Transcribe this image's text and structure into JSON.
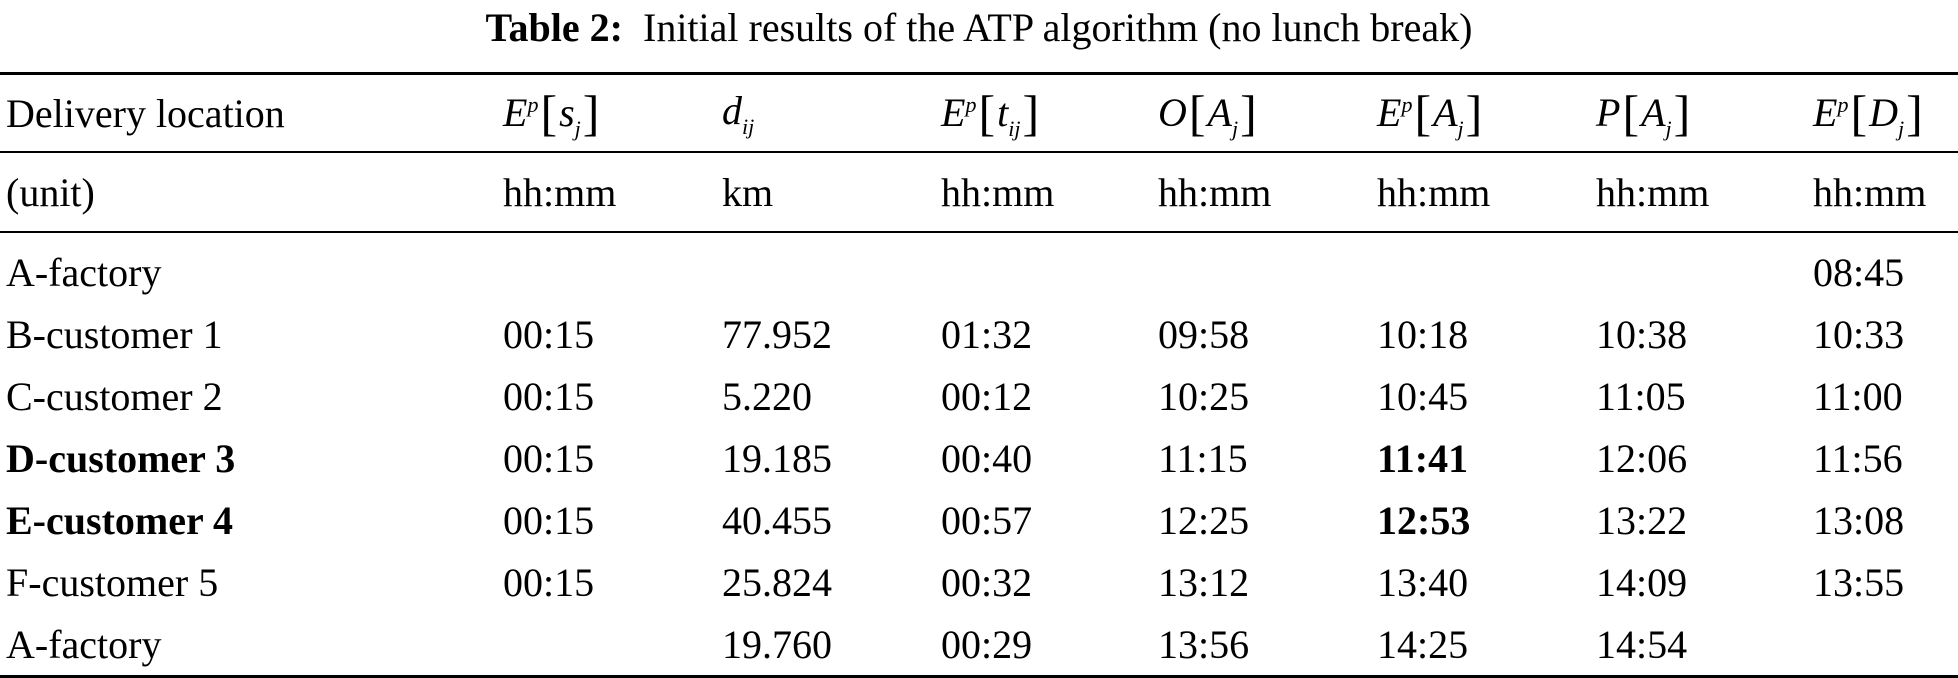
{
  "caption": {
    "label": "Table 2:",
    "text": "Initial results of the ATP algorithm (no lunch break)"
  },
  "header": {
    "col0": "Delivery location",
    "math": {
      "E": "E",
      "p": "p",
      "s": "s",
      "j": "j",
      "d": "d",
      "ij": "ij",
      "t": "t",
      "O": "O",
      "A": "A",
      "P": "P",
      "D": "D",
      "lbr": "[",
      "rbr": "]"
    }
  },
  "units": [
    "(unit)",
    "hh:mm",
    "km",
    "hh:mm",
    "hh:mm",
    "hh:mm",
    "hh:mm",
    "hh:mm"
  ],
  "rows": [
    {
      "location": "A-factory",
      "s": "",
      "d": "",
      "t": "",
      "O": "",
      "EA": "",
      "PA": "",
      "D": "08:45"
    },
    {
      "location": "B-customer 1",
      "s": "00:15",
      "d": "77.952",
      "t": "01:32",
      "O": "09:58",
      "EA": "10:18",
      "PA": "10:38",
      "D": "10:33"
    },
    {
      "location": "C-customer 2",
      "s": "00:15",
      "d": "5.220",
      "t": "00:12",
      "O": "10:25",
      "EA": "10:45",
      "PA": "11:05",
      "D": "11:00"
    },
    {
      "location": "D-customer 3",
      "s": "00:15",
      "d": "19.185",
      "t": "00:40",
      "O": "11:15",
      "EA": "11:41",
      "PA": "12:06",
      "D": "11:56"
    },
    {
      "location": "E-customer 4",
      "s": "00:15",
      "d": "40.455",
      "t": "00:57",
      "O": "12:25",
      "EA": "12:53",
      "PA": "13:22",
      "D": "13:08"
    },
    {
      "location": "F-customer 5",
      "s": "00:15",
      "d": "25.824",
      "t": "00:32",
      "O": "13:12",
      "EA": "13:40",
      "PA": "14:09",
      "D": "13:55"
    },
    {
      "location": "A-factory",
      "s": "",
      "d": "19.760",
      "t": "00:29",
      "O": "13:56",
      "EA": "14:25",
      "PA": "14:54",
      "D": ""
    }
  ]
}
